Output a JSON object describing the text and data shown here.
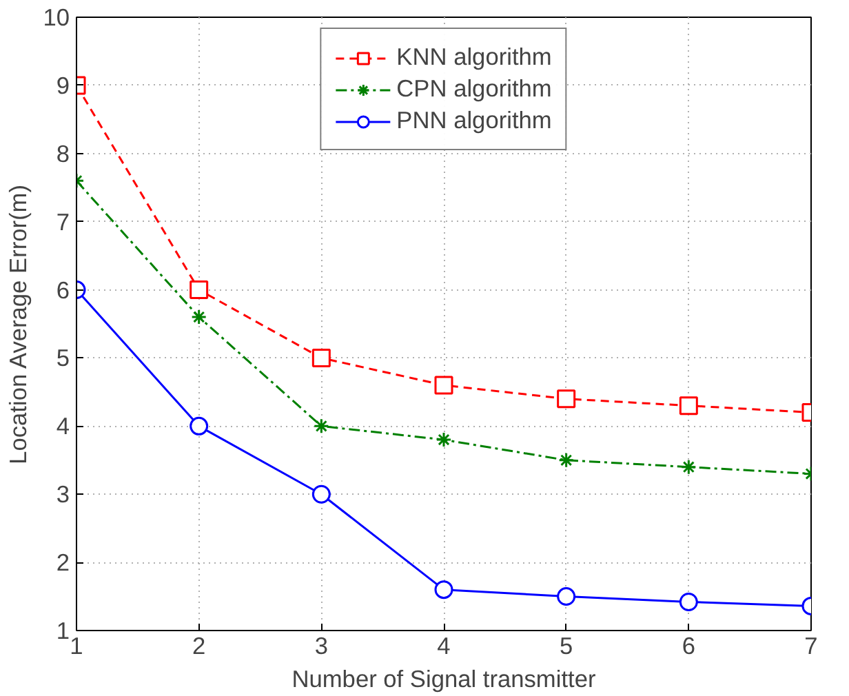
{
  "chart_data": {
    "type": "line",
    "xlabel": "Number of Signal transmitter",
    "ylabel": "Location Average Error(m)",
    "x": [
      1,
      2,
      3,
      4,
      5,
      6,
      7
    ],
    "series": [
      {
        "name": "KNN algorithm",
        "color": "#ff0000",
        "marker": "square",
        "line_style": "dashed",
        "values": [
          9,
          6,
          5,
          4.6,
          4.4,
          4.3,
          4.2
        ]
      },
      {
        "name": "CPN algorithm",
        "color": "#008000",
        "marker": "cross",
        "line_style": "dashdot",
        "values": [
          7.6,
          5.6,
          4,
          3.8,
          3.5,
          3.4,
          3.3
        ]
      },
      {
        "name": "PNN algorithm",
        "color": "#0000ff",
        "marker": "circle",
        "line_style": "solid",
        "values": [
          6,
          4,
          3,
          1.6,
          1.5,
          1.42,
          1.36
        ]
      }
    ],
    "xlim": [
      1,
      7
    ],
    "ylim": [
      1,
      10
    ],
    "xticks": [
      1,
      2,
      3,
      4,
      5,
      6,
      7
    ],
    "yticks": [
      1,
      2,
      3,
      4,
      5,
      6,
      7,
      8,
      9,
      10
    ],
    "grid": true,
    "legend": "top"
  }
}
